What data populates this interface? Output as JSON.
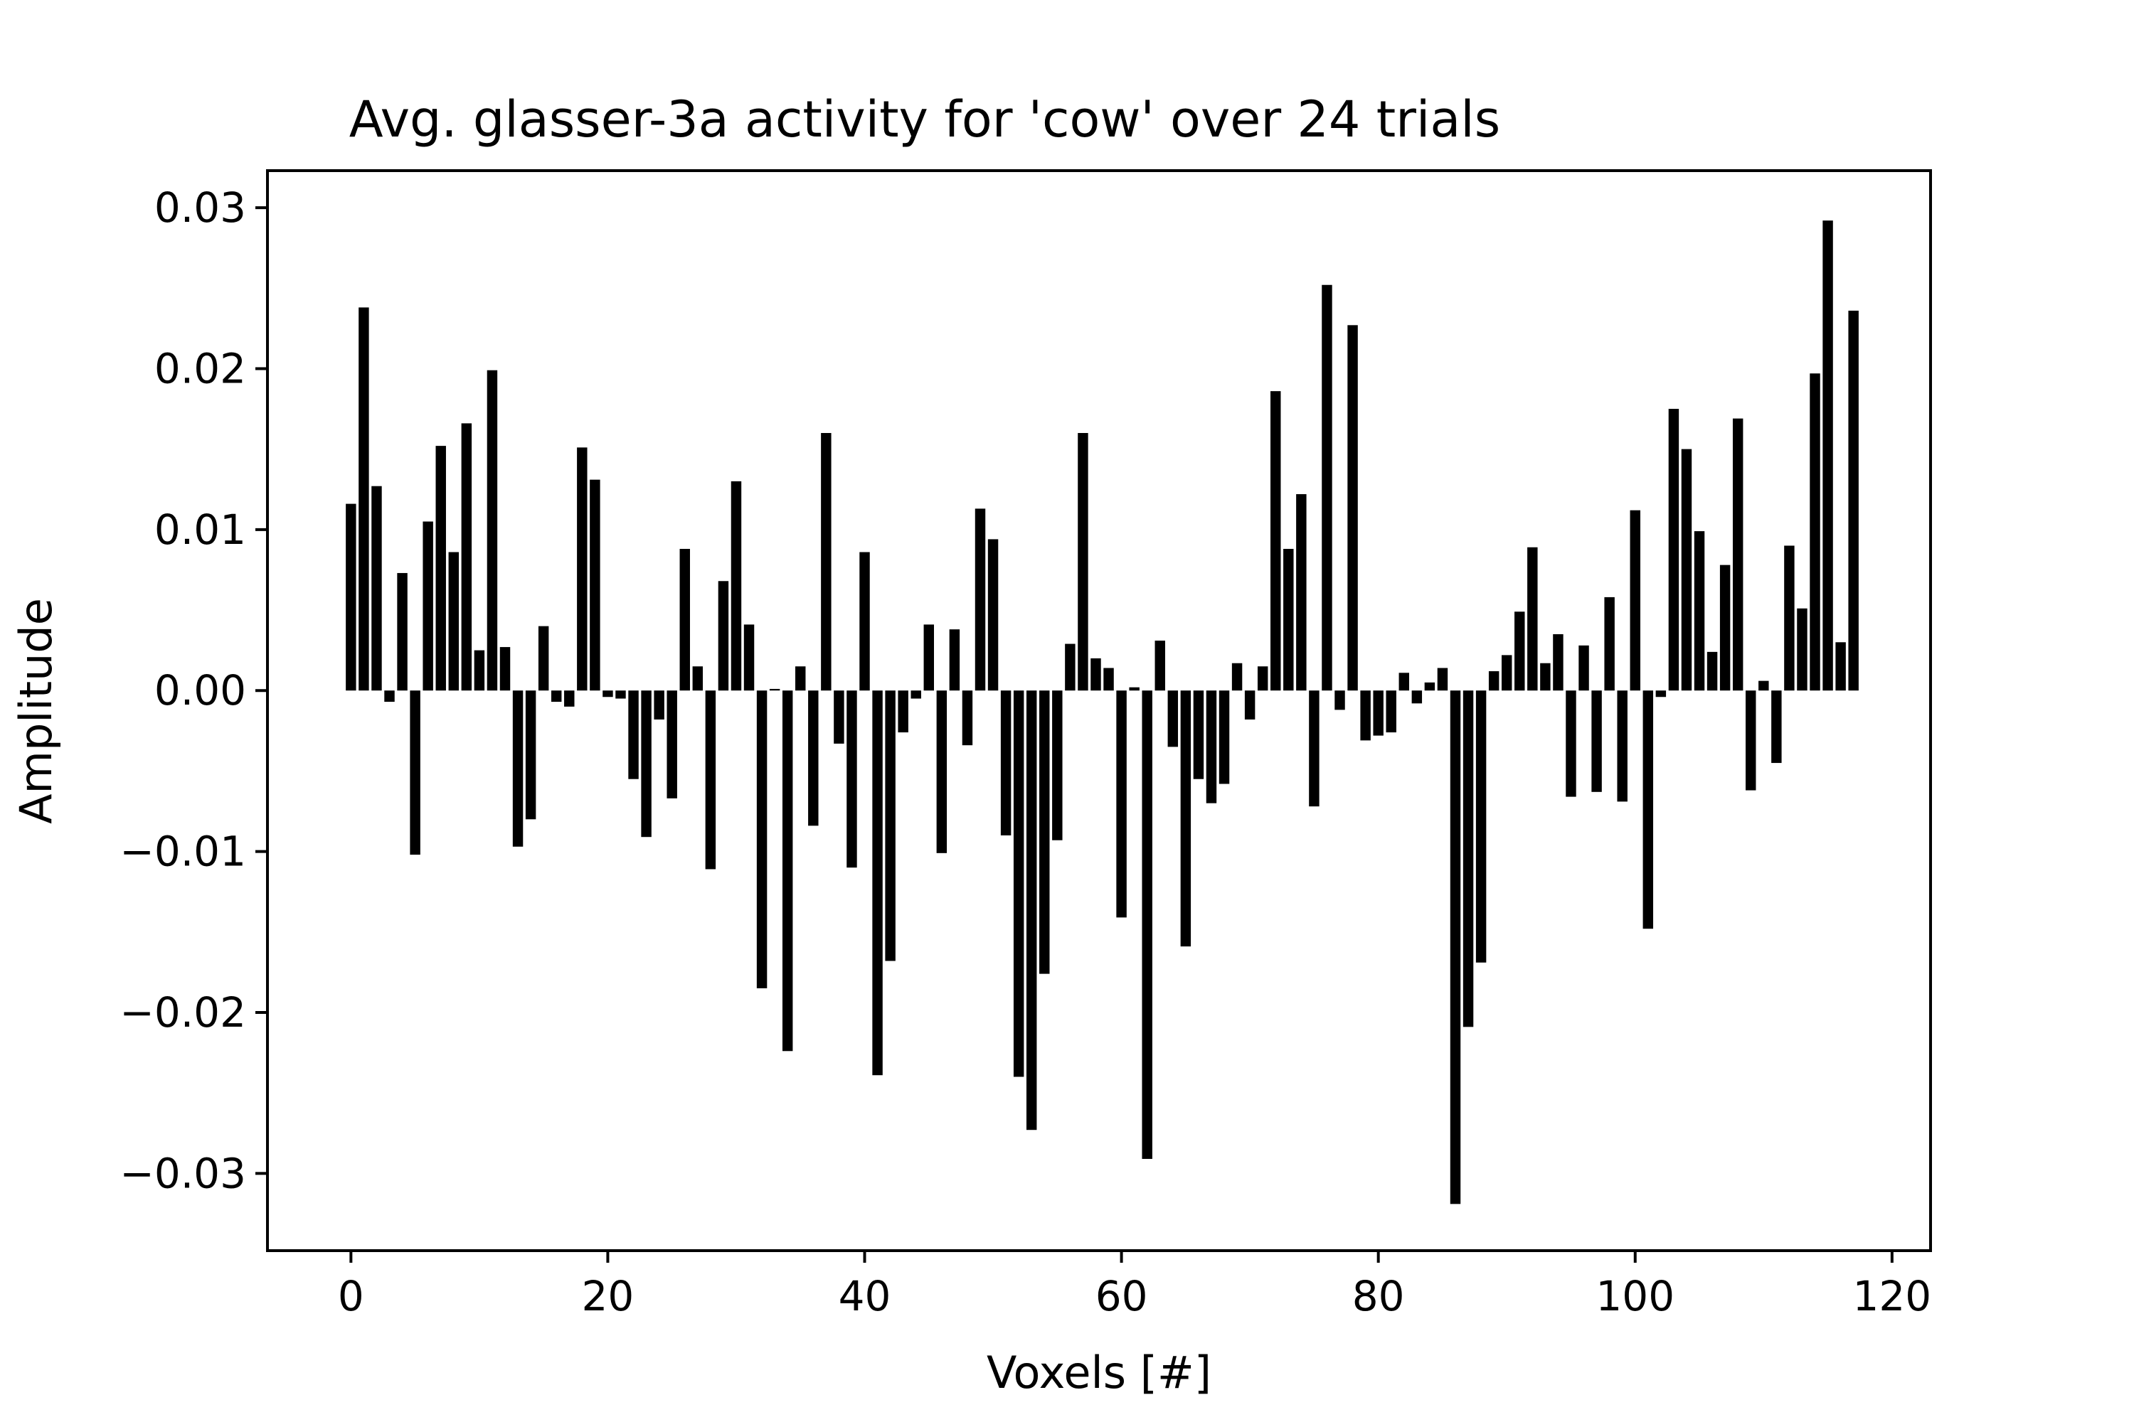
{
  "chart_data": {
    "type": "bar",
    "title": "Avg. glasser-3a activity for 'cow' over 24 trials",
    "xlabel": "Voxels [#]",
    "ylabel": "Amplitude",
    "xlim": [
      -6.5,
      123
    ],
    "ylim": [
      -0.0348,
      0.0323
    ],
    "xticks": [
      0,
      20,
      40,
      60,
      80,
      100,
      120
    ],
    "xtick_labels": [
      "0",
      "20",
      "40",
      "60",
      "80",
      "100",
      "120"
    ],
    "yticks": [
      -0.03,
      -0.02,
      -0.01,
      0.0,
      0.01,
      0.02,
      0.03
    ],
    "ytick_labels": [
      "−0.03",
      "−0.02",
      "−0.01",
      "0.00",
      "0.01",
      "0.02",
      "0.03"
    ],
    "grid": false,
    "bar_color": "#000000",
    "x": [
      0,
      1,
      2,
      3,
      4,
      5,
      6,
      7,
      8,
      9,
      10,
      11,
      12,
      13,
      14,
      15,
      16,
      17,
      18,
      19,
      20,
      21,
      22,
      23,
      24,
      25,
      26,
      27,
      28,
      29,
      30,
      31,
      32,
      33,
      34,
      35,
      36,
      37,
      38,
      39,
      40,
      41,
      42,
      43,
      44,
      45,
      46,
      47,
      48,
      49,
      50,
      51,
      52,
      53,
      54,
      55,
      56,
      57,
      58,
      59,
      60,
      61,
      62,
      63,
      64,
      65,
      66,
      67,
      68,
      69,
      70,
      71,
      72,
      73,
      74,
      75,
      76,
      77,
      78,
      79,
      80,
      81,
      82,
      83,
      84,
      85,
      86,
      87,
      88,
      89,
      90,
      91,
      92,
      93,
      94,
      95,
      96,
      97,
      98,
      99,
      100,
      101,
      102,
      103,
      104,
      105,
      106,
      107,
      108,
      109,
      110,
      111,
      112,
      113,
      114,
      115,
      116,
      117
    ],
    "values": [
      0.0116,
      0.0238,
      0.0127,
      -0.0007,
      0.0073,
      -0.0102,
      0.0105,
      0.0152,
      0.0086,
      0.0166,
      0.0025,
      0.0199,
      0.0027,
      -0.0097,
      -0.008,
      0.004,
      -0.0007,
      -0.001,
      0.0151,
      0.0131,
      -0.0004,
      -0.0005,
      -0.0055,
      -0.0091,
      -0.0018,
      -0.0067,
      0.0088,
      0.0015,
      -0.0111,
      0.0068,
      0.013,
      0.0041,
      -0.0185,
      0.0001,
      -0.0224,
      0.0015,
      -0.0084,
      0.016,
      -0.0033,
      -0.011,
      0.0086,
      -0.0239,
      -0.0168,
      -0.0026,
      -0.0005,
      0.0041,
      -0.0101,
      0.0038,
      -0.0034,
      0.0113,
      0.0094,
      -0.009,
      -0.024,
      -0.0273,
      -0.0176,
      -0.0093,
      0.0029,
      0.016,
      0.002,
      0.0014,
      -0.0141,
      0.0002,
      -0.0291,
      0.0031,
      -0.0035,
      -0.0159,
      -0.0055,
      -0.007,
      -0.0058,
      0.0017,
      -0.0018,
      0.0015,
      0.0186,
      0.0088,
      0.0122,
      -0.0072,
      0.0252,
      -0.0012,
      0.0227,
      -0.0031,
      -0.0028,
      -0.0026,
      0.0011,
      -0.0008,
      0.0005,
      0.0014,
      -0.0319,
      -0.0209,
      -0.0169,
      0.0012,
      0.0022,
      0.0049,
      0.0089,
      0.0017,
      0.0035,
      -0.0066,
      0.0028,
      -0.0063,
      0.0058,
      -0.0069,
      0.0112,
      -0.0148,
      -0.0004,
      0.0175,
      0.015,
      0.0099,
      0.0024,
      0.0078,
      0.0169,
      -0.0062,
      0.0006,
      -0.0045,
      0.009,
      0.0051,
      0.0197,
      0.0292,
      0.003,
      0.0236
    ]
  }
}
